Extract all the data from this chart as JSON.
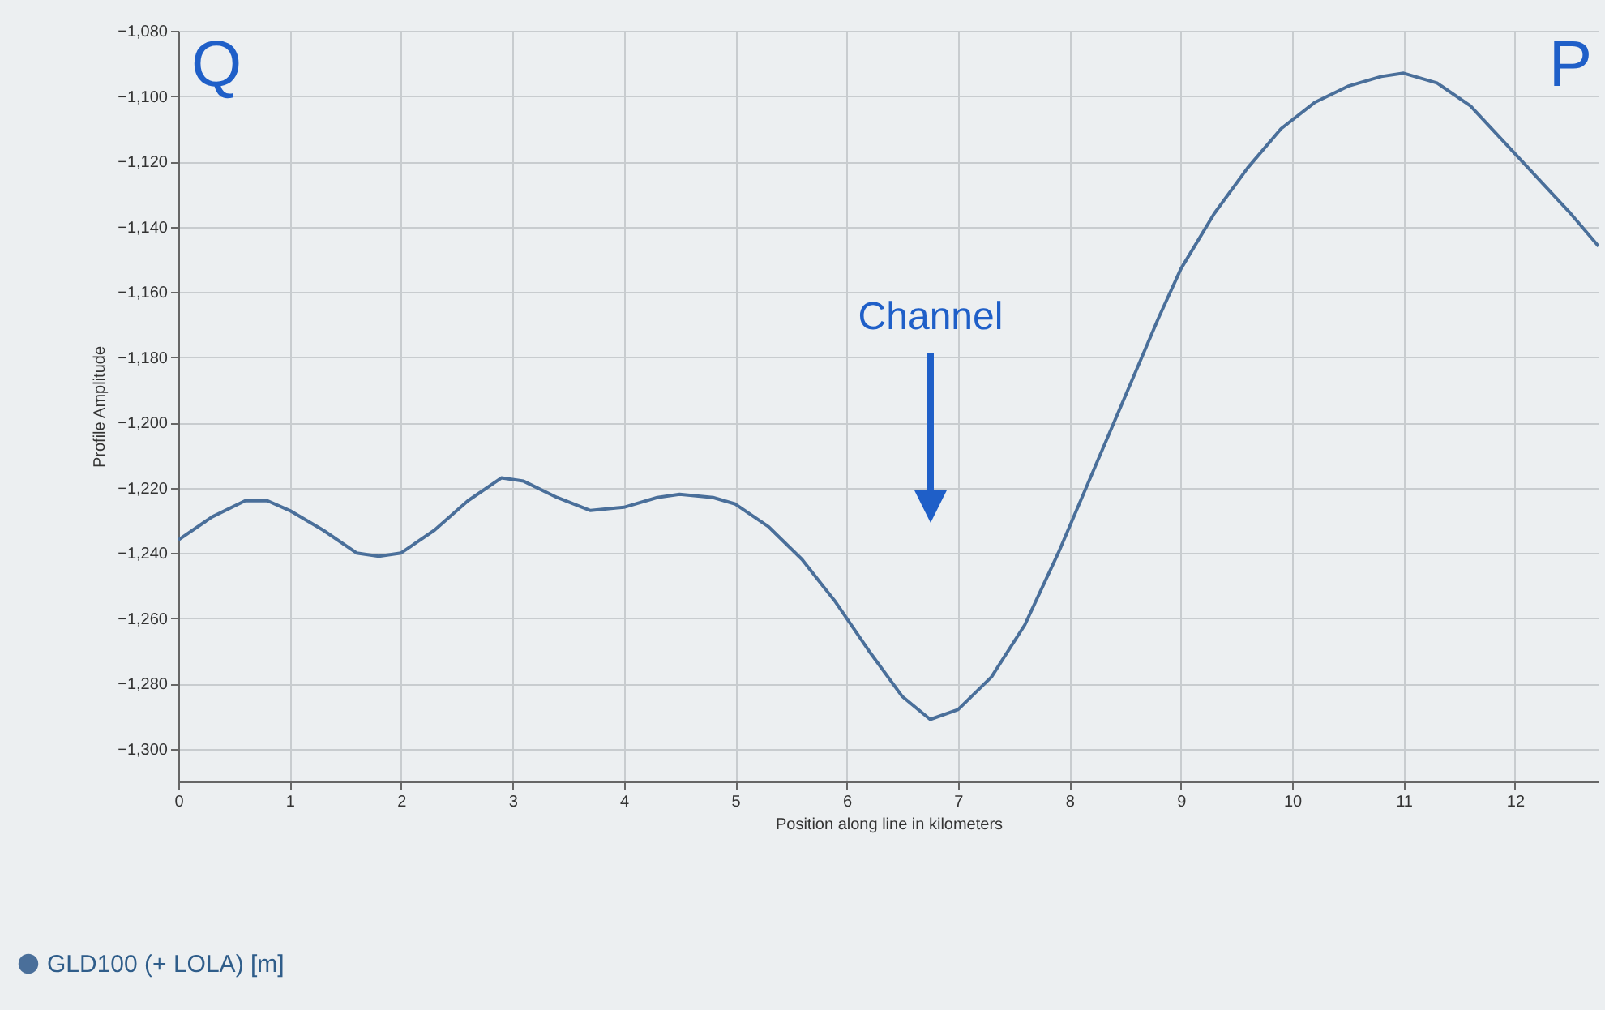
{
  "chart_data": {
    "type": "line",
    "xlabel": "Position along line in kilometers",
    "ylabel": "Profile Amplitude",
    "x": [
      0,
      0.3,
      0.6,
      0.8,
      1.0,
      1.3,
      1.6,
      1.8,
      2.0,
      2.3,
      2.6,
      2.9,
      3.1,
      3.4,
      3.7,
      4.0,
      4.3,
      4.5,
      4.8,
      5.0,
      5.3,
      5.6,
      5.9,
      6.2,
      6.5,
      6.75,
      7.0,
      7.3,
      7.6,
      7.9,
      8.2,
      8.5,
      8.8,
      9.0,
      9.3,
      9.6,
      9.9,
      10.2,
      10.5,
      10.8,
      11.0,
      11.3,
      11.6,
      11.9,
      12.2,
      12.5,
      12.75
    ],
    "series": [
      {
        "name": "GLD100 (+ LOLA) [m]",
        "color": "#4a6f9a",
        "values": [
          -1236,
          -1229,
          -1224,
          -1224,
          -1227,
          -1233,
          -1240,
          -1241,
          -1240,
          -1233,
          -1224,
          -1217,
          -1218,
          -1223,
          -1227,
          -1226,
          -1223,
          -1222,
          -1223,
          -1225,
          -1232,
          -1242,
          -1255,
          -1270,
          -1284,
          -1291,
          -1288,
          -1278,
          -1262,
          -1240,
          -1216,
          -1192,
          -1168,
          -1153,
          -1136,
          -1122,
          -1110,
          -1102,
          -1097,
          -1094,
          -1093,
          -1096,
          -1103,
          -1114,
          -1125,
          -1136,
          -1146
        ]
      }
    ],
    "xlim": [
      0,
      12.75
    ],
    "xticks": [
      0,
      1,
      2,
      3,
      4,
      5,
      6,
      7,
      8,
      9,
      10,
      11,
      12
    ],
    "ylim": [
      -1310,
      -1080
    ],
    "yticks": [
      {
        "value": -1300,
        "label": "−1,300"
      },
      {
        "value": -1280,
        "label": "−1,280"
      },
      {
        "value": -1260,
        "label": "−1,260"
      },
      {
        "value": -1240,
        "label": "−1,240"
      },
      {
        "value": -1220,
        "label": "−1,220"
      },
      {
        "value": -1200,
        "label": "−1,200"
      },
      {
        "value": -1180,
        "label": "−1,180"
      },
      {
        "value": -1160,
        "label": "−1,160"
      },
      {
        "value": -1140,
        "label": "−1,140"
      },
      {
        "value": -1120,
        "label": "−1,120"
      },
      {
        "value": -1100,
        "label": "−1,100"
      },
      {
        "value": -1080,
        "label": "−1,080"
      }
    ],
    "grid": true,
    "legend": "bottom left",
    "marker": "none",
    "line_style": "solid",
    "annotations": [
      "Q",
      "P",
      "Channel"
    ]
  }
}
